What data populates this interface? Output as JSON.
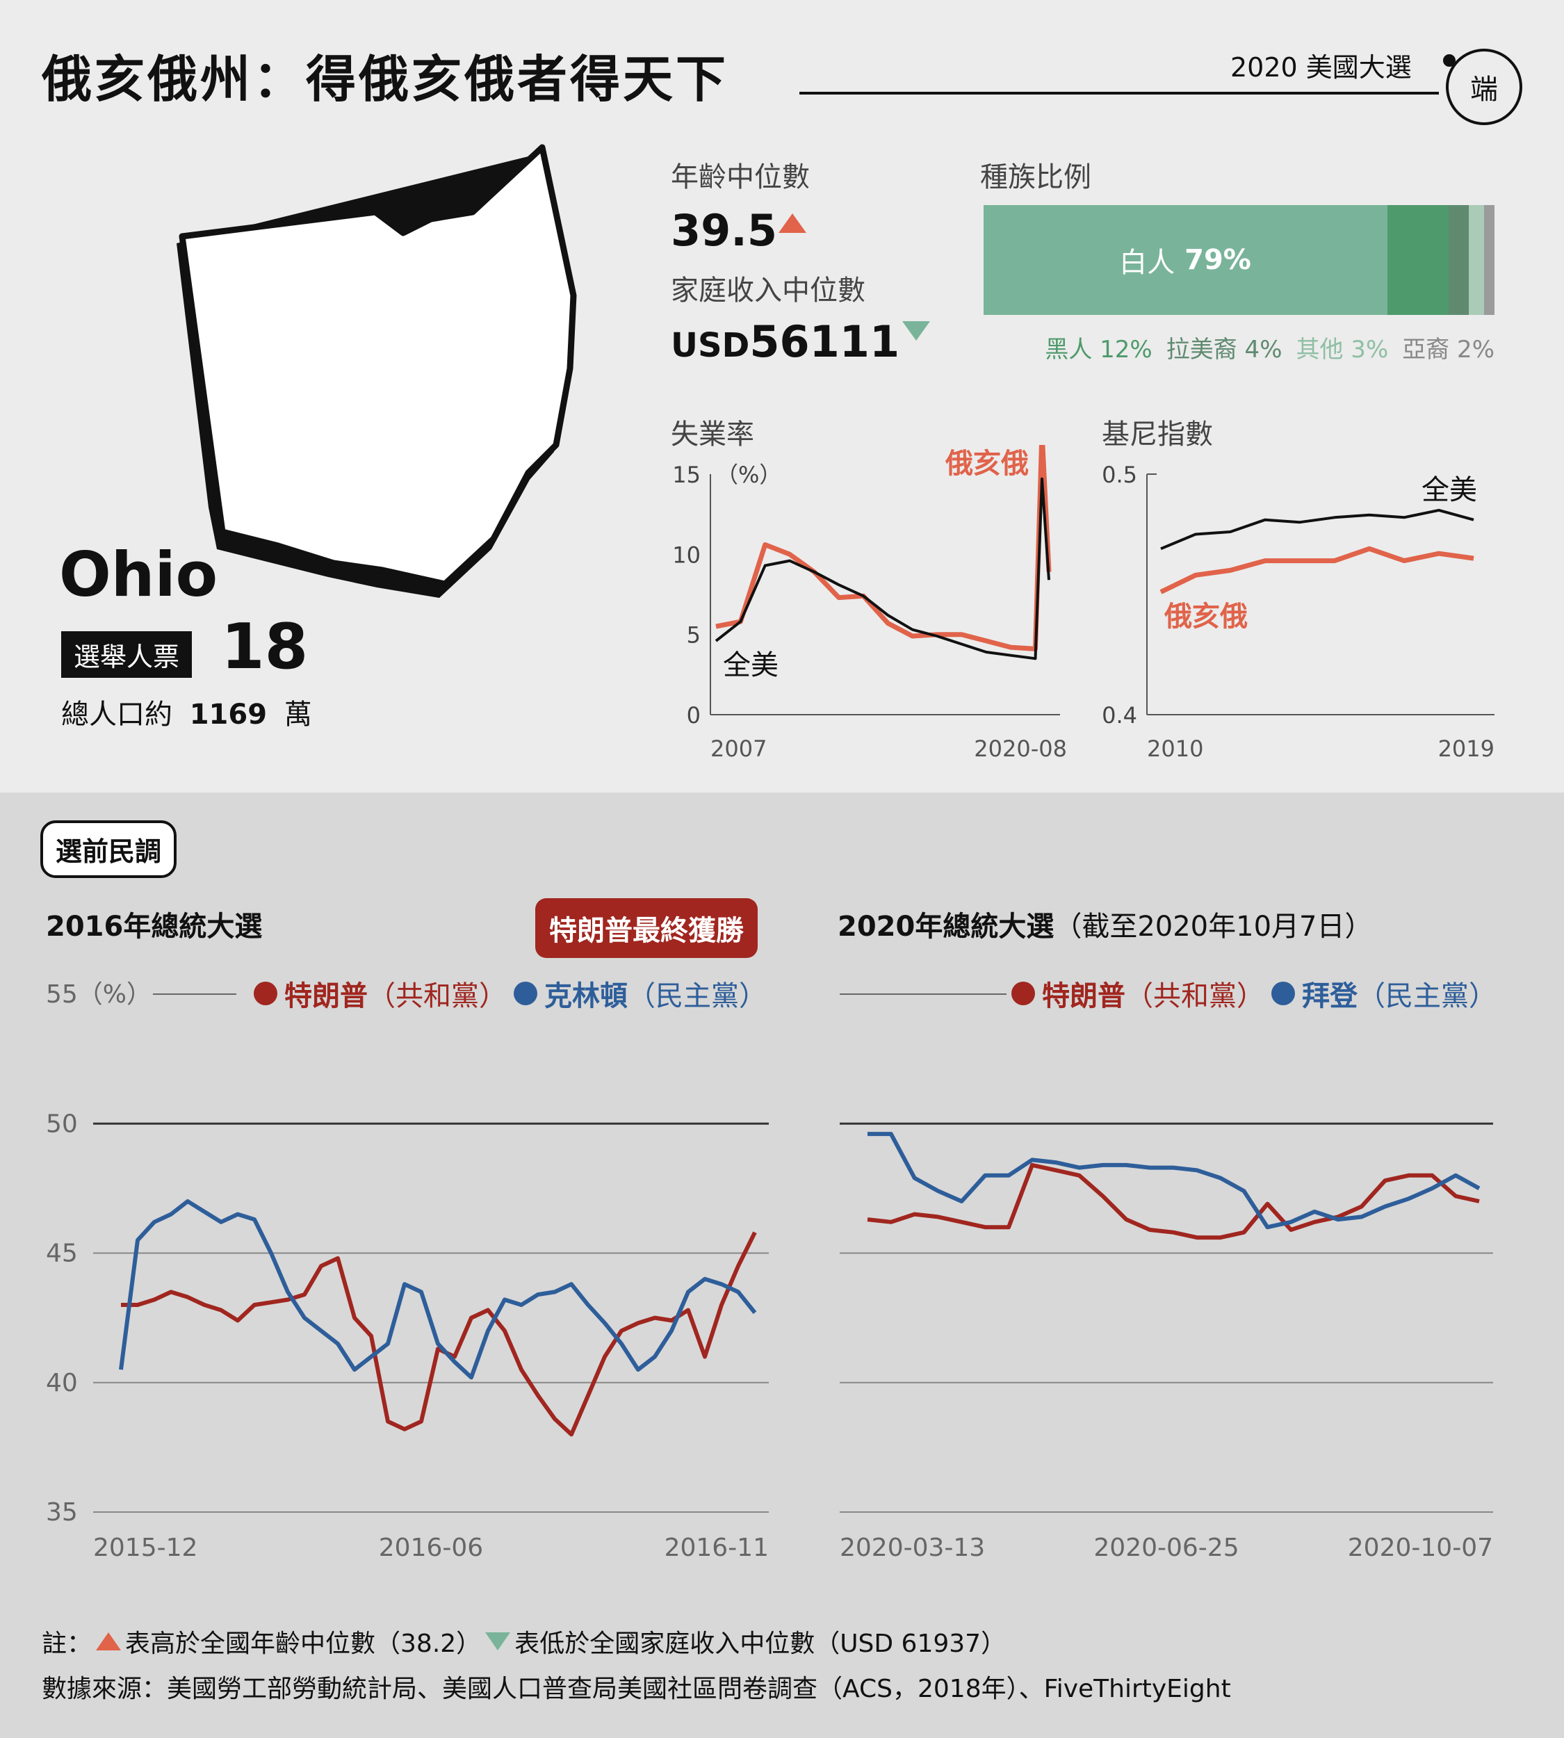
{
  "header": {
    "title": "俄亥俄州：得俄亥俄者得天下",
    "tag": "2020 美國大選",
    "logo": "端"
  },
  "state": {
    "name": "Ohio",
    "ev_label": "選舉人票",
    "ev": "18",
    "pop_prefix": "總人口約",
    "pop_value": "1169",
    "pop_unit": "萬"
  },
  "stats": {
    "age_label": "年齡中位數",
    "age_value": "39.5",
    "income_label": "家庭收入中位數",
    "income_prefix": "USD",
    "income_value": "56111",
    "race_label": "種族比例",
    "race_main_label": "白人",
    "race_main_value": "79%",
    "race_segments": [
      {
        "name": "白人",
        "value": 79,
        "color": "#79b49a"
      },
      {
        "name": "黑人",
        "value": 12,
        "color": "#4f9a6c"
      },
      {
        "name": "拉美裔",
        "value": 4,
        "color": "#5f8a70"
      },
      {
        "name": "其他",
        "value": 3,
        "color": "#a9cbb8"
      },
      {
        "name": "亞裔",
        "value": 2,
        "color": "#9b9b9b"
      }
    ],
    "race_legend": [
      {
        "text": "黑人 12%",
        "color": "#4f9a6c"
      },
      {
        "text": "拉美裔 4%",
        "color": "#5f8a70"
      },
      {
        "text": "其他 3%",
        "color": "#8fbfa4"
      },
      {
        "text": "亞裔 2%",
        "color": "#888888"
      }
    ]
  },
  "chart_data": [
    {
      "type": "line",
      "title": "失業率",
      "ylabel": "（%）",
      "ylim": [
        0,
        15
      ],
      "yticks": [
        0,
        5,
        10,
        15
      ],
      "xticks": [
        "2007",
        "2020-08"
      ],
      "x": [
        "2007",
        "2008",
        "2009",
        "2010",
        "2011",
        "2012",
        "2013",
        "2014",
        "2015",
        "2016",
        "2017",
        "2018",
        "2019",
        "2020-02",
        "2020-04",
        "2020-08"
      ],
      "series": [
        {
          "name": "俄亥俄",
          "color": "#e0634a",
          "values": [
            5.5,
            5.8,
            10.6,
            10.0,
            8.9,
            7.3,
            7.4,
            5.7,
            4.9,
            5.0,
            5.0,
            4.6,
            4.2,
            4.1,
            17.6,
            8.9
          ]
        },
        {
          "name": "全美",
          "color": "#111111",
          "values": [
            4.6,
            5.8,
            9.3,
            9.6,
            8.9,
            8.1,
            7.4,
            6.2,
            5.3,
            4.9,
            4.4,
            3.9,
            3.7,
            3.5,
            14.7,
            8.4
          ]
        }
      ]
    },
    {
      "type": "line",
      "title": "基尼指數",
      "ylim": [
        0.4,
        0.5
      ],
      "yticks": [
        0.4,
        0.5
      ],
      "xticks": [
        "2010",
        "2019"
      ],
      "x": [
        2010,
        2011,
        2012,
        2013,
        2014,
        2015,
        2016,
        2017,
        2018,
        2019
      ],
      "series": [
        {
          "name": "全美",
          "color": "#111111",
          "values": [
            0.469,
            0.475,
            0.476,
            0.481,
            0.48,
            0.482,
            0.483,
            0.482,
            0.485,
            0.481
          ]
        },
        {
          "name": "俄亥俄",
          "color": "#e0634a",
          "values": [
            0.451,
            0.458,
            0.46,
            0.464,
            0.464,
            0.464,
            0.469,
            0.464,
            0.467,
            0.465
          ]
        }
      ]
    },
    {
      "type": "line",
      "title": "2016年總統大選",
      "ylabel": "（%）",
      "ylim": [
        35,
        55
      ],
      "yticks": [
        35,
        40,
        45,
        50,
        55
      ],
      "xticks": [
        "2015-12",
        "2016-06",
        "2016-11"
      ],
      "series": [
        {
          "name": "特朗普",
          "party": "（共和黨）",
          "color": "#a0261f",
          "values": [
            43.0,
            43.0,
            43.2,
            43.5,
            43.3,
            43.0,
            42.8,
            42.4,
            43.0,
            43.1,
            43.2,
            43.4,
            44.5,
            44.8,
            42.5,
            41.8,
            38.5,
            38.2,
            38.5,
            41.3,
            41.0,
            42.5,
            42.8,
            42.0,
            40.5,
            39.5,
            38.6,
            38.0,
            39.5,
            41.0,
            42.0,
            42.3,
            42.5,
            42.4,
            42.8,
            41.0,
            43.0,
            44.5,
            45.8
          ]
        },
        {
          "name": "克林頓",
          "party": "（民主黨）",
          "color": "#2e5e9a",
          "values": [
            40.5,
            45.5,
            46.2,
            46.5,
            47.0,
            46.6,
            46.2,
            46.5,
            46.3,
            45.0,
            43.5,
            42.5,
            42.0,
            41.5,
            40.5,
            41.0,
            41.5,
            43.8,
            43.5,
            41.5,
            40.8,
            40.2,
            42.0,
            43.2,
            43.0,
            43.4,
            43.5,
            43.8,
            43.0,
            42.3,
            41.5,
            40.5,
            41.0,
            42.0,
            43.5,
            44.0,
            43.8,
            43.5,
            42.7
          ]
        }
      ]
    },
    {
      "type": "line",
      "title": "2020年總統大選",
      "subtitle": "（截至2020年10月7日）",
      "ylim": [
        35,
        55
      ],
      "yticks": [
        35,
        40,
        45,
        50,
        55
      ],
      "xticks": [
        "2020-03-13",
        "2020-06-25",
        "2020-10-07"
      ],
      "series": [
        {
          "name": "特朗普",
          "party": "（共和黨）",
          "color": "#a0261f",
          "values": [
            46.3,
            46.2,
            46.5,
            46.4,
            46.2,
            46.0,
            46.0,
            48.4,
            48.2,
            48.0,
            47.2,
            46.3,
            45.9,
            45.8,
            45.6,
            45.6,
            45.8,
            46.9,
            45.9,
            46.2,
            46.4,
            46.8,
            47.8,
            48.0,
            48.0,
            47.2,
            47.0
          ]
        },
        {
          "name": "拜登",
          "party": "（民主黨）",
          "color": "#2e5e9a",
          "values": [
            49.6,
            49.6,
            47.9,
            47.4,
            47.0,
            48.0,
            48.0,
            48.6,
            48.5,
            48.3,
            48.4,
            48.4,
            48.3,
            48.3,
            48.2,
            47.9,
            47.4,
            46.0,
            46.2,
            46.6,
            46.3,
            46.4,
            46.8,
            47.1,
            47.5,
            48.0,
            47.5
          ]
        }
      ]
    }
  ],
  "labels": {
    "ohio": "俄亥俄",
    "us": "全美"
  },
  "poll": {
    "section": "選前民調",
    "winner": "特朗普最終獲勝",
    "unit": "55（%）"
  },
  "notes": {
    "note_prefix": "註：",
    "note_up": "表高於全國年齡中位數（38.2）",
    "note_down": "表低於全國家庭收入中位數（USD 61937）",
    "source": "數據來源：美國勞工部勞動統計局、美國人口普查局美國社區問卷調查（ACS，2018年）、FiveThirtyEight"
  }
}
